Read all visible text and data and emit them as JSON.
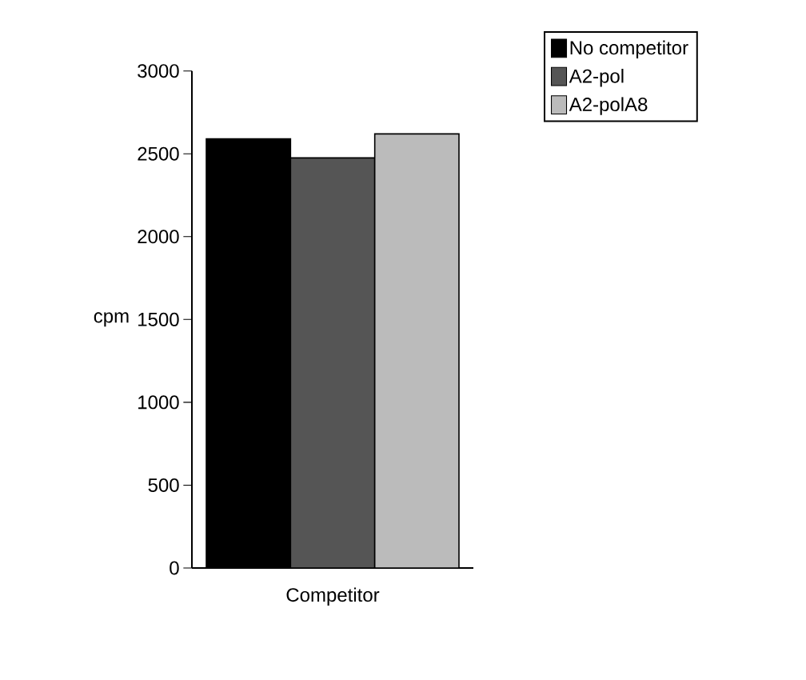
{
  "chart_data": {
    "type": "bar",
    "xlabel": "Competitor",
    "ylabel": "cpm",
    "categories": [
      null
    ],
    "series": [
      {
        "name": "No competitor",
        "color": "#000000",
        "values": [
          2590
        ]
      },
      {
        "name": "A2-pol",
        "color": "#555555",
        "values": [
          2475
        ]
      },
      {
        "name": "A2-polA8",
        "color": "#bbbbbb",
        "values": [
          2620
        ]
      }
    ],
    "ylim": [
      0,
      3000
    ],
    "yticks": [
      0,
      500,
      1000,
      1500,
      2000,
      2500,
      3000
    ],
    "grid": false,
    "legend": "top right"
  }
}
